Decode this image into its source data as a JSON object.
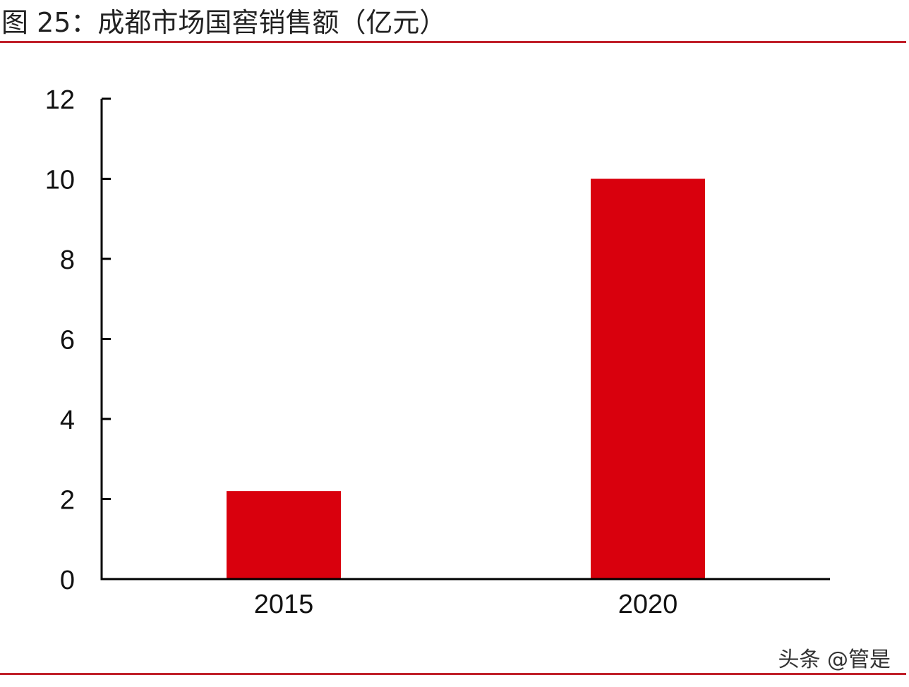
{
  "title": "图 25：成都市场国窖销售额（亿元）",
  "colors": {
    "bar": "#d9000d",
    "rule": "#c0202a",
    "axis": "#000000"
  },
  "watermark": "头条 @管是",
  "chart_data": {
    "type": "bar",
    "title": "图 25：成都市场国窖销售额（亿元）",
    "categories": [
      "2015",
      "2020"
    ],
    "values": [
      2.2,
      10
    ],
    "xlabel": "",
    "ylabel": "",
    "ylim": [
      0,
      12
    ],
    "yticks": [
      0,
      2,
      4,
      6,
      8,
      10,
      12
    ],
    "grid": false,
    "legend": "none"
  }
}
